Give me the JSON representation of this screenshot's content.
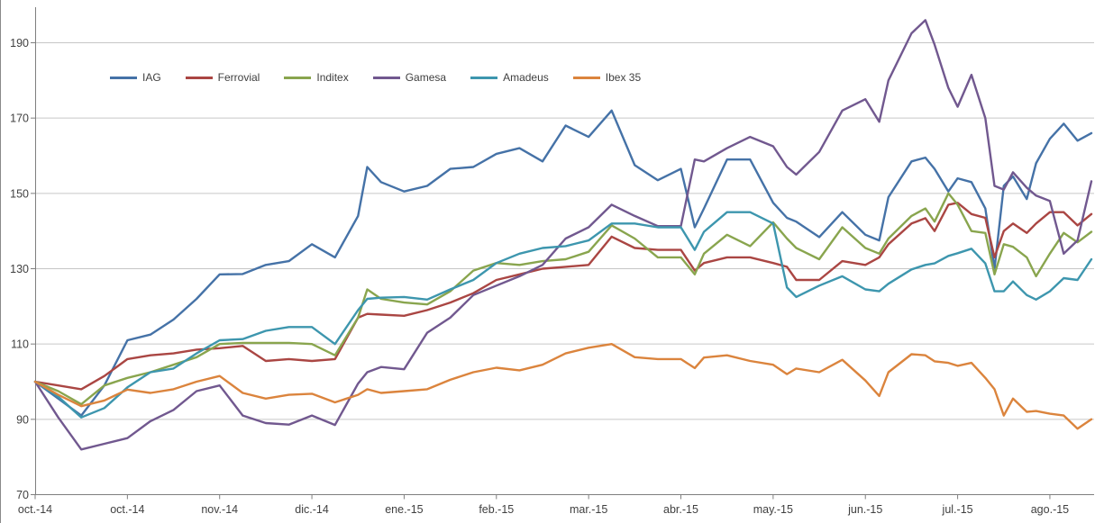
{
  "chart_data": {
    "type": "line",
    "title": "",
    "subtitle": "",
    "xlabel": "",
    "ylabel": "",
    "grid": "horizontal",
    "legend_position": "top-left-inside",
    "background": "#FFFFFF",
    "gridline_color": "#C6C6C6",
    "axis_color": "#7F7F7F",
    "tick_label_color": "#404040",
    "y_ticks": [
      70,
      90,
      110,
      130,
      150,
      170,
      190
    ],
    "ylim": [
      70,
      199.5
    ],
    "x_unit": "trading days from first point (normalized prices, base 100)",
    "xlim_days": [
      0,
      229
    ],
    "x_tick_days": [
      0,
      20,
      40,
      60,
      80,
      100,
      120,
      140,
      160,
      180,
      200,
      220
    ],
    "x_tick_labels": [
      "oct.-14",
      "oct.-14",
      "nov.-14",
      "dic.-14",
      "ene.-15",
      "feb.-15",
      "mar.-15",
      "abr.-15",
      "may.-15",
      "jun.-15",
      "jul.-15",
      "ago.-15"
    ],
    "sample_days": [
      0,
      5,
      10,
      15,
      20,
      25,
      30,
      35,
      40,
      45,
      50,
      55,
      60,
      65,
      70,
      72,
      75,
      80,
      85,
      90,
      95,
      100,
      105,
      110,
      115,
      120,
      125,
      130,
      135,
      140,
      143,
      145,
      150,
      155,
      160,
      163,
      165,
      170,
      175,
      180,
      183,
      185,
      190,
      193,
      195,
      198,
      200,
      203,
      206,
      208,
      210,
      212,
      215,
      217,
      220,
      223,
      226,
      229
    ],
    "series": [
      {
        "name": "IAG",
        "color": "#4572A7",
        "values": [
          100,
          95.5,
          91,
          99,
          111,
          112.5,
          116.5,
          122,
          128.5,
          128.6,
          131,
          132,
          136.5,
          133,
          144,
          157,
          153,
          150.5,
          152,
          156.5,
          157,
          160.5,
          162,
          158.5,
          168,
          165,
          172,
          157.5,
          153.5,
          156.5,
          141,
          146,
          159,
          159,
          147.5,
          143.5,
          142.5,
          138.4,
          145,
          139,
          137.5,
          149,
          158.5,
          159.5,
          156.5,
          150.5,
          154,
          153,
          146,
          130,
          152,
          154.5,
          148.5,
          158,
          164.5,
          168.5,
          164,
          166
        ]
      },
      {
        "name": "Ferrovial",
        "color": "#AA4643",
        "values": [
          100,
          99,
          98,
          101.5,
          106,
          107,
          107.5,
          108.5,
          108.9,
          109.5,
          105.5,
          106,
          105.5,
          106,
          117,
          118,
          117.8,
          117.5,
          119,
          121,
          123.5,
          127,
          128.5,
          130,
          130.5,
          131,
          138.5,
          135.5,
          135,
          135,
          129.5,
          131.5,
          133,
          133,
          131.5,
          130.5,
          127,
          127,
          132,
          131,
          133,
          136.5,
          142,
          143.4,
          140,
          147,
          147.5,
          144.5,
          143.5,
          133,
          140,
          142,
          139.5,
          142,
          145,
          145,
          141.5,
          144.5
        ]
      },
      {
        "name": "Inditex",
        "color": "#89A54E",
        "values": [
          100,
          97.5,
          94,
          99,
          101,
          102.5,
          104.5,
          106.5,
          110,
          110.3,
          110.3,
          110.3,
          110,
          107,
          117,
          124.5,
          122,
          121,
          120.5,
          124,
          129.5,
          131.5,
          131,
          132,
          132.5,
          134.5,
          141.5,
          138,
          133,
          133,
          128.5,
          134,
          139,
          136,
          142.3,
          138,
          135.5,
          132.5,
          141,
          135.5,
          134,
          138,
          144,
          146,
          142.5,
          150,
          147,
          140,
          139.5,
          128.5,
          136.5,
          135.8,
          133,
          128,
          134,
          139.5,
          137,
          139.8
        ]
      },
      {
        "name": "Gamesa",
        "color": "#71588F",
        "values": [
          100,
          90.5,
          82,
          83.5,
          85,
          89.5,
          92.5,
          97.5,
          99,
          91,
          89,
          88.6,
          91,
          88.5,
          99.5,
          102.5,
          103.9,
          103.3,
          113,
          117,
          123,
          125.5,
          128,
          131,
          138,
          141,
          147,
          144,
          141.3,
          141.3,
          159,
          158.5,
          162,
          165,
          162.5,
          157,
          155,
          161,
          172,
          175,
          169,
          180,
          192.5,
          196,
          189.5,
          178,
          173,
          181.5,
          170,
          152,
          151,
          155.6,
          151.5,
          149.4,
          148,
          134,
          137.5,
          153.2
        ]
      },
      {
        "name": "Amadeus",
        "color": "#3D96AE",
        "values": [
          100,
          96,
          90.5,
          93,
          98.5,
          102.5,
          103.5,
          107.5,
          111,
          111.3,
          113.5,
          114.5,
          114.5,
          110,
          119,
          122,
          122.3,
          122.5,
          121.8,
          124.5,
          127,
          131.5,
          134,
          135.5,
          136,
          137.5,
          142,
          142,
          141,
          141,
          135,
          139.8,
          145,
          145,
          142,
          125,
          122.5,
          125.5,
          128,
          124.5,
          124,
          126,
          129.8,
          131,
          131.4,
          133.4,
          134.1,
          135.3,
          131.4,
          124,
          124,
          126.6,
          123,
          121.8,
          124,
          127.5,
          127,
          132.5
        ]
      },
      {
        "name": "Ibex 35",
        "color": "#DB843D",
        "values": [
          100,
          96.5,
          93.5,
          95,
          97.9,
          97,
          98,
          100,
          101.5,
          97,
          95.5,
          96.5,
          96.8,
          94.5,
          96.5,
          98,
          97,
          97.5,
          98,
          100.5,
          102.5,
          103.7,
          103,
          104.5,
          107.5,
          109,
          110,
          106.5,
          106,
          106,
          103.6,
          106.4,
          107,
          105.5,
          104.5,
          102,
          103.5,
          102.5,
          105.8,
          100.3,
          96.2,
          102.5,
          107.3,
          107,
          105.4,
          105,
          104.2,
          105,
          101,
          98,
          91,
          95.5,
          92,
          92.2,
          91.5,
          91,
          87.5,
          90
        ]
      }
    ]
  }
}
